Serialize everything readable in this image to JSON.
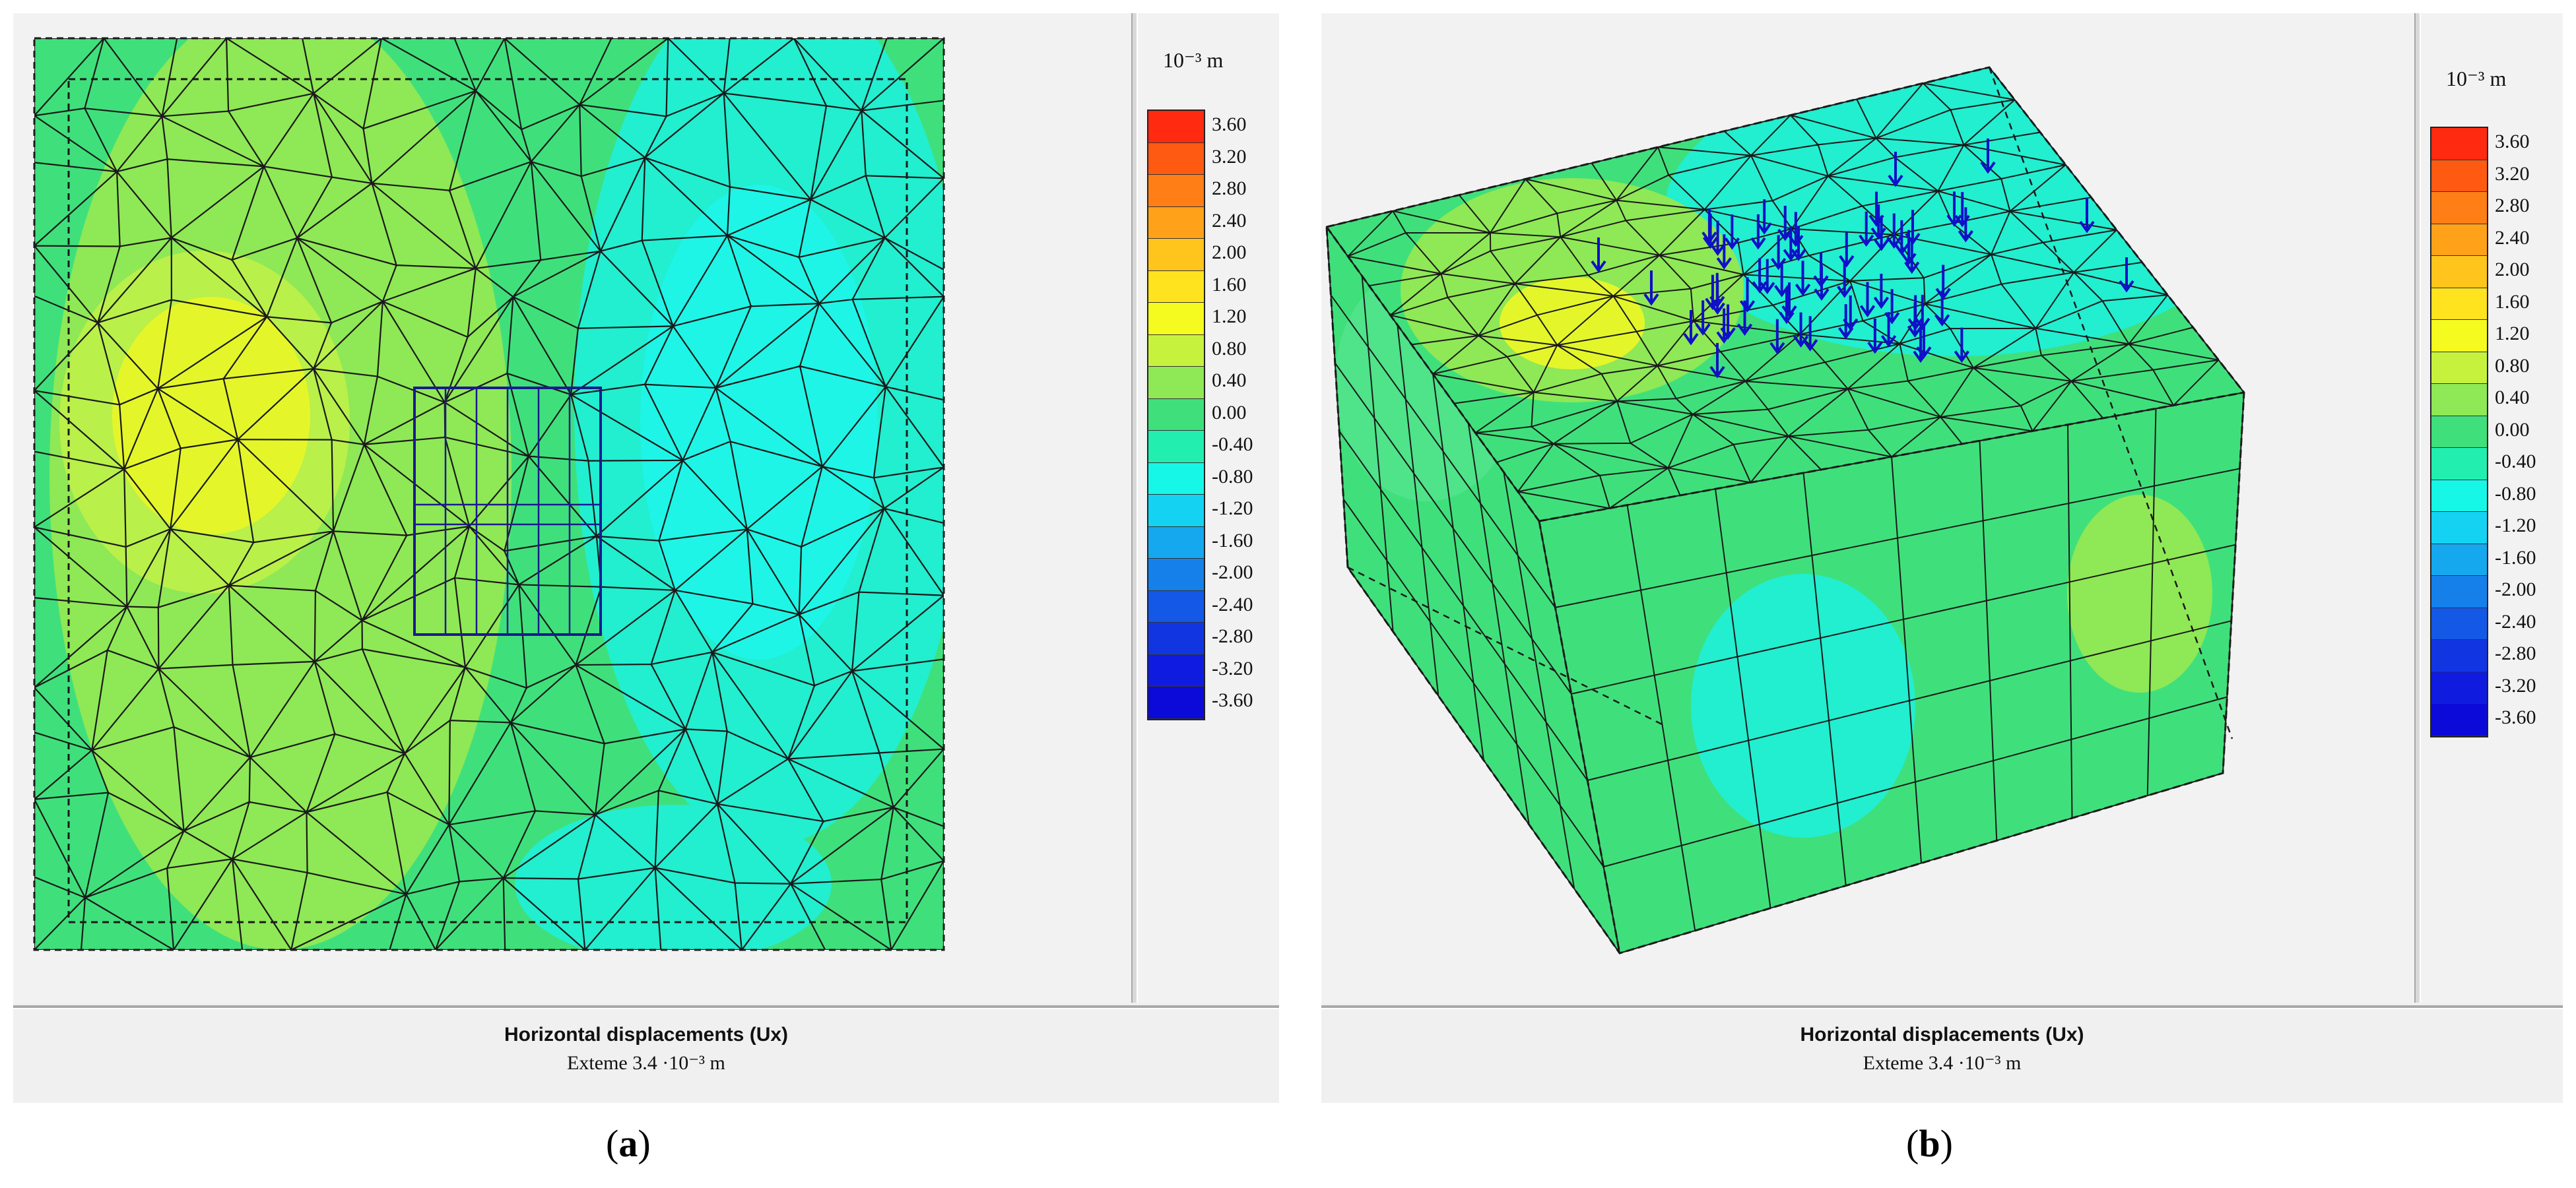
{
  "panels": [
    {
      "id": "a",
      "caption_open": "(",
      "caption_letter": "a",
      "caption_close": ")",
      "legend_unit": "10⁻³ m",
      "footer_title": "Horizontal displacements (Ux)",
      "footer_sub": "Exteme 3.4 ·10⁻³ m"
    },
    {
      "id": "b",
      "caption_open": "(",
      "caption_letter": "b",
      "caption_close": ")",
      "legend_unit": "10⁻³ m",
      "footer_title": "Horizontal displacements (Ux)",
      "footer_sub": "Exteme 3.4 ·10⁻³ m"
    }
  ],
  "legend_scale": [
    {
      "label": "3.60",
      "color": "#ff2a10"
    },
    {
      "label": "3.20",
      "color": "#ff5a12"
    },
    {
      "label": "2.80",
      "color": "#ff7f16"
    },
    {
      "label": "2.40",
      "color": "#ffa21a"
    },
    {
      "label": "2.00",
      "color": "#ffc51c"
    },
    {
      "label": "1.60",
      "color": "#ffe31e"
    },
    {
      "label": "1.20",
      "color": "#f5fb1e"
    },
    {
      "label": "0.80",
      "color": "#c6f23e"
    },
    {
      "label": "0.40",
      "color": "#8fe855"
    },
    {
      "label": "0.00",
      "color": "#3fe07b"
    },
    {
      "label": "-0.40",
      "color": "#22eeb0"
    },
    {
      "label": "-0.80",
      "color": "#16f7e8"
    },
    {
      "label": "-1.20",
      "color": "#14d3f2"
    },
    {
      "label": "-1.60",
      "color": "#15a8ef"
    },
    {
      "label": "-2.00",
      "color": "#1580ea"
    },
    {
      "label": "-2.40",
      "color": "#1458e6"
    },
    {
      "label": "-2.80",
      "color": "#1235e2"
    },
    {
      "label": "-3.20",
      "color": "#0f1ce0"
    },
    {
      "label": "-3.60",
      "color": "#0c0ad8"
    }
  ],
  "colors": {
    "mesh_line": "#1a1a1a",
    "load_arrow": "#1010c8",
    "field_green": "#3fe07b",
    "field_light_green": "#8fe855",
    "field_yellow": "#e4f62a",
    "field_cyan": "#22eed0"
  }
}
